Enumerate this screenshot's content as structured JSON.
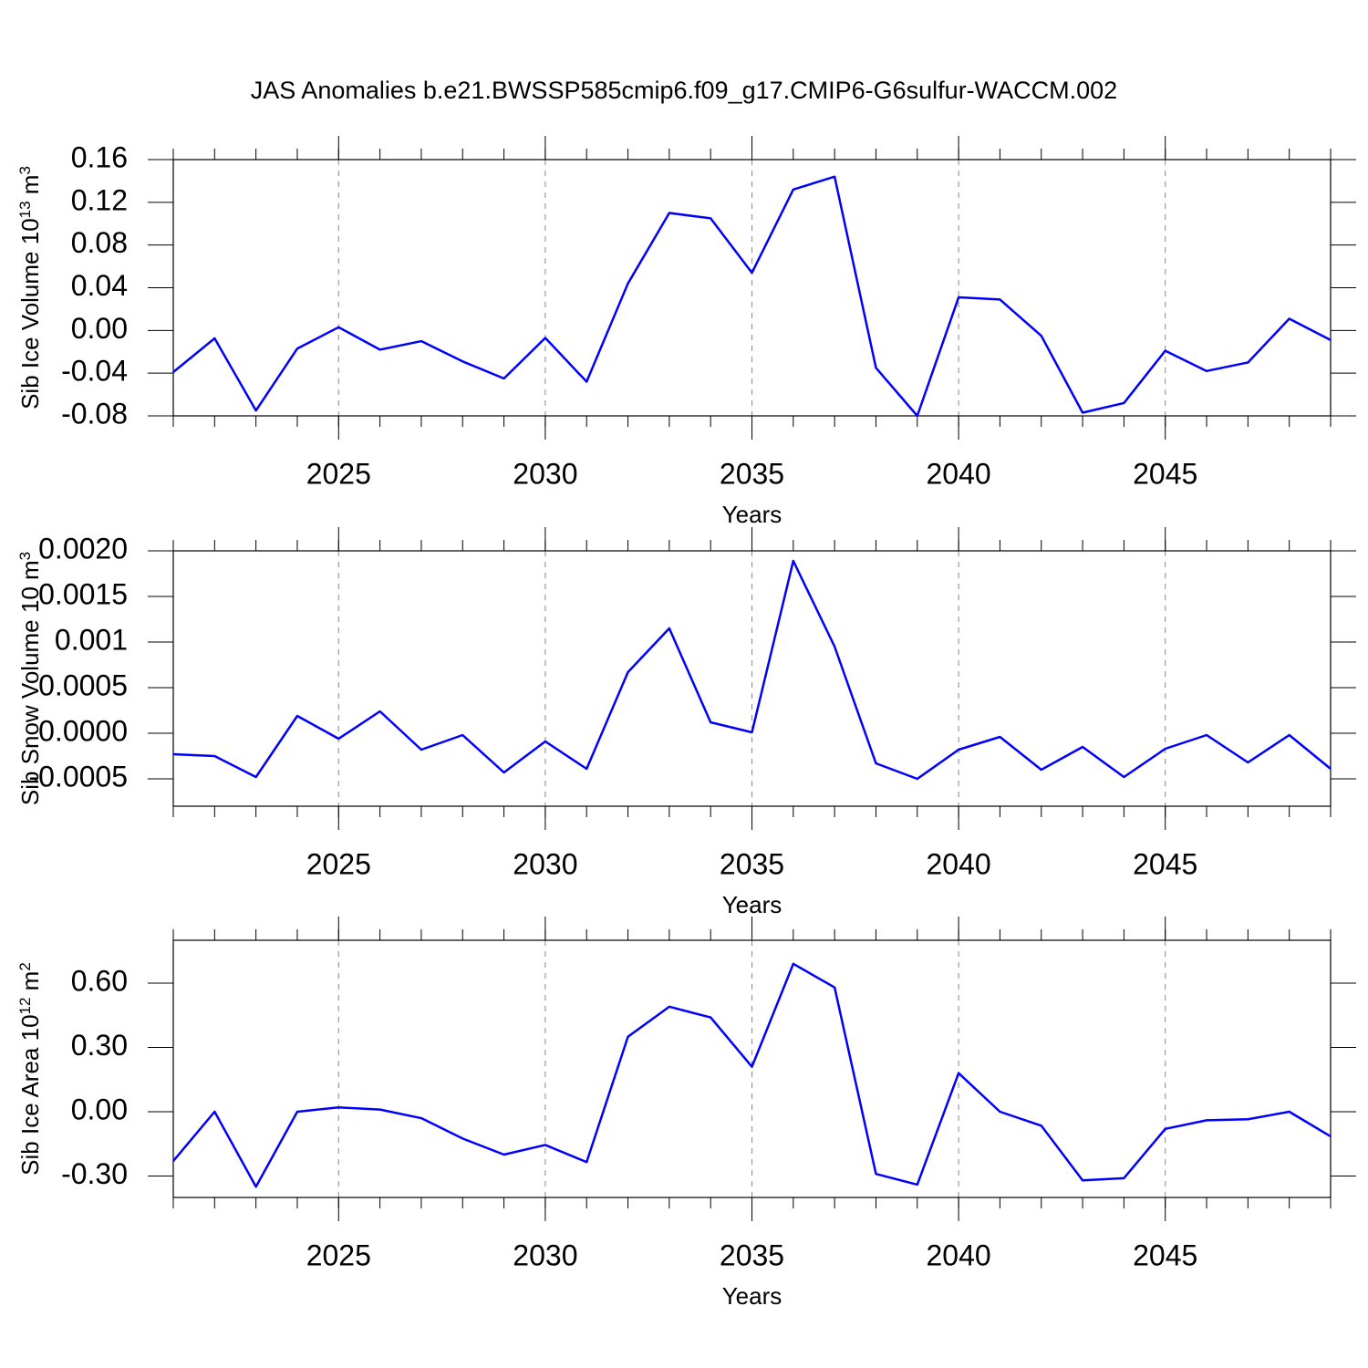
{
  "title": "JAS Anomalies b.e21.BWSSP585cmip6.f09_g17.CMIP6-G6sulfur-WACCM.002",
  "chart_data": [
    {
      "type": "line",
      "ylabel": [
        {
          "text": "Sib Ice Volume 10"
        },
        {
          "text": "13",
          "sup": true
        },
        {
          "text": " m"
        },
        {
          "text": "3",
          "sup": true
        }
      ],
      "xlabel": "Years",
      "x": [
        2021,
        2022,
        2023,
        2024,
        2025,
        2026,
        2027,
        2028,
        2029,
        2030,
        2031,
        2032,
        2033,
        2034,
        2035,
        2036,
        2037,
        2038,
        2039,
        2040,
        2041,
        2042,
        2043,
        2044,
        2045,
        2046,
        2047,
        2048,
        2049
      ],
      "values": [
        -0.039,
        -0.0074,
        -0.075,
        -0.017,
        0.003,
        -0.018,
        -0.01,
        -0.029,
        -0.045,
        -0.007,
        -0.048,
        0.044,
        0.11,
        0.105,
        0.054,
        0.132,
        0.144,
        -0.035,
        -0.08,
        0.031,
        0.029,
        -0.005,
        -0.077,
        -0.068,
        -0.019,
        -0.038,
        -0.03,
        0.011,
        -0.009
      ],
      "color": "#0000ff",
      "xlim": [
        2021,
        2049
      ],
      "xticks": [
        2025,
        2030,
        2035,
        2040,
        2045
      ],
      "ylim": [
        -0.08,
        0.16
      ],
      "yticks": [
        -0.08,
        -0.04,
        {
          "value": 0,
          "label": "0.00"
        },
        0.04,
        0.08,
        0.12,
        0.16
      ],
      "xgrid": true
    },
    {
      "type": "line",
      "ylabel": [
        {
          "text": "Sib Snow Volume 10"
        },
        {
          "text": " m"
        },
        {
          "text": "3",
          "sup": true
        }
      ],
      "xlabel": "Years",
      "x": [
        2021,
        2022,
        2023,
        2024,
        2025,
        2026,
        2027,
        2028,
        2029,
        2030,
        2031,
        2032,
        2033,
        2034,
        2035,
        2036,
        2037,
        2038,
        2039,
        2040,
        2041,
        2042,
        2043,
        2044,
        2045,
        2046,
        2047,
        2048,
        2049
      ],
      "values": [
        -0.00023,
        -0.00025,
        -0.00048,
        0.00019,
        -6e-05,
        0.00024,
        -0.00018,
        -2e-05,
        -0.00043,
        -9e-05,
        -0.00039,
        0.00067,
        0.00115,
        0.00012,
        1e-05,
        0.00189,
        0.00095,
        -0.00033,
        -0.0005,
        -0.00018,
        -4e-05,
        -0.0004,
        -0.00015,
        -0.00048,
        -0.00017,
        -2e-05,
        -0.00032,
        -2e-05,
        -0.00039
      ],
      "color": "#0000ff",
      "xlim": [
        2021,
        2049
      ],
      "xticks": [
        2025,
        2030,
        2035,
        2040,
        2045
      ],
      "ylim": [
        -0.0008,
        0.002
      ],
      "yticks": [
        {
          "value": -0.0005,
          "label": "-0.0005"
        },
        {
          "value": 0,
          "label": "0.0000"
        },
        0.0005,
        0.001,
        0.0015,
        {
          "value": 0.002,
          "label": "0.0020"
        }
      ],
      "xgrid": true
    },
    {
      "type": "line",
      "ylabel": [
        {
          "text": "Sib Ice Area 10"
        },
        {
          "text": "12",
          "sup": true
        },
        {
          "text": " m"
        },
        {
          "text": "2",
          "sup": true
        }
      ],
      "xlabel": "Years",
      "x": [
        2021,
        2022,
        2023,
        2024,
        2025,
        2026,
        2027,
        2028,
        2029,
        2030,
        2031,
        2032,
        2033,
        2034,
        2035,
        2036,
        2037,
        2038,
        2039,
        2040,
        2041,
        2042,
        2043,
        2044,
        2045,
        2046,
        2047,
        2048,
        2049
      ],
      "values": [
        -0.23,
        0.0,
        -0.35,
        0.0,
        0.02,
        0.01,
        -0.03,
        -0.125,
        -0.2,
        -0.155,
        -0.235,
        0.35,
        0.49,
        0.44,
        0.21,
        0.69,
        0.58,
        -0.29,
        -0.34,
        0.18,
        0.0,
        -0.065,
        -0.32,
        -0.31,
        -0.08,
        -0.04,
        -0.035,
        0.0,
        -0.115
      ],
      "color": "#0000ff",
      "xlim": [
        2021,
        2049
      ],
      "xticks": [
        2025,
        2030,
        2035,
        2040,
        2045
      ],
      "ylim": [
        -0.4,
        0.8
      ],
      "yticks": [
        {
          "value": -0.3,
          "label": "-0.30"
        },
        {
          "value": 0,
          "label": "0.00"
        },
        {
          "value": 0.3,
          "label": "0.30"
        },
        {
          "value": 0.6,
          "label": "0.60"
        }
      ],
      "xgrid": true
    }
  ]
}
